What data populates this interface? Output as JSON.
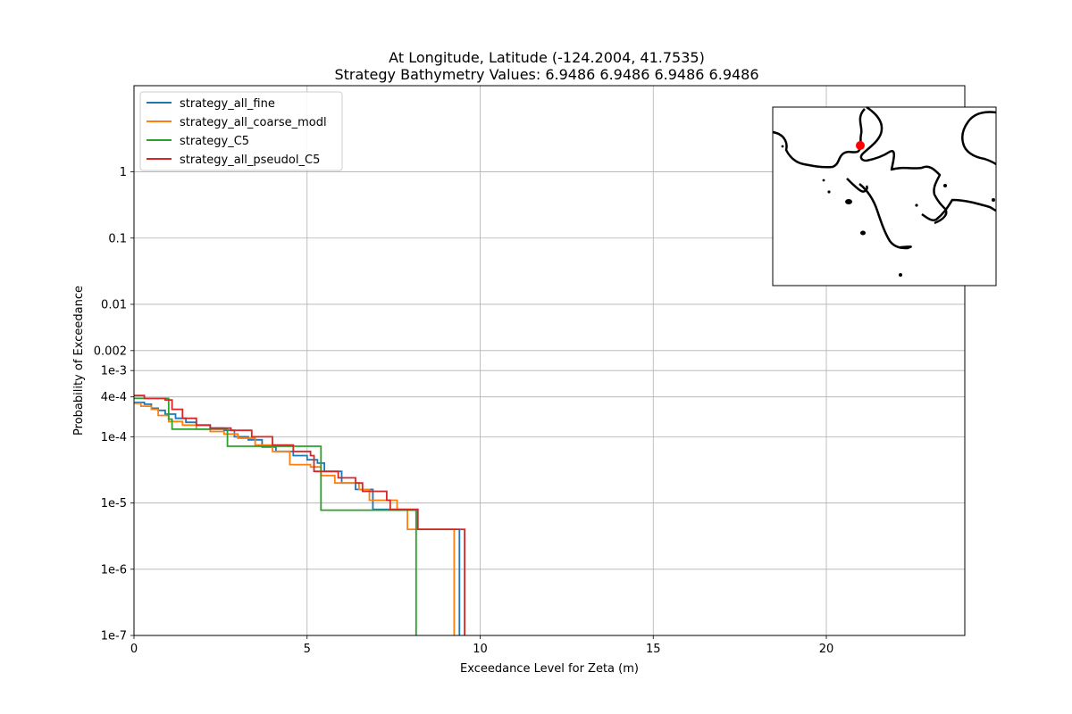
{
  "chart_data": {
    "type": "line",
    "title_line1": "At Longitude, Latitude (-124.2004,  41.7535)",
    "title_line2": "Strategy Bathymetry Values:    6.9486    6.9486    6.9486    6.9486",
    "xlabel": "Exceedance Level for Zeta (m)",
    "ylabel": "Probability of Exceedance",
    "xlim": [
      0,
      24
    ],
    "ylim": [
      1e-07,
      20
    ],
    "yscale": "log",
    "grid": true,
    "legend_placement": "top-left",
    "x_ticks": [
      {
        "value": 0,
        "label": "0"
      },
      {
        "value": 5,
        "label": "5"
      },
      {
        "value": 10,
        "label": "10"
      },
      {
        "value": 15,
        "label": "15"
      },
      {
        "value": 20,
        "label": "20"
      }
    ],
    "y_ticks": [
      {
        "value": 1,
        "label": "1"
      },
      {
        "value": 0.1,
        "label": "0.1"
      },
      {
        "value": 0.01,
        "label": "0.01"
      },
      {
        "value": 0.002,
        "label": "0.002"
      },
      {
        "value": 0.001,
        "label": "1e-3"
      },
      {
        "value": 0.0004,
        "label": "4e-4"
      },
      {
        "value": 0.0001,
        "label": "1e-4"
      },
      {
        "value": 1e-05,
        "label": "1e-5"
      },
      {
        "value": 1e-06,
        "label": "1e-6"
      },
      {
        "value": 1e-07,
        "label": "1e-7"
      }
    ],
    "series": [
      {
        "name": "strategy_all_fine",
        "color": "#1f77b4",
        "points": [
          [
            0,
            0.00033
          ],
          [
            0.3,
            0.00031
          ],
          [
            0.5,
            0.00027
          ],
          [
            0.7,
            0.00025
          ],
          [
            0.9,
            0.00022
          ],
          [
            1.2,
            0.00019
          ],
          [
            1.5,
            0.000165
          ],
          [
            1.8,
            0.00015
          ],
          [
            2.2,
            0.000135
          ],
          [
            2.6,
            0.000125
          ],
          [
            2.9,
            0.0001
          ],
          [
            3.3,
            9e-05
          ],
          [
            3.7,
            7e-05
          ],
          [
            4.1,
            6e-05
          ],
          [
            4.6,
            5.2e-05
          ],
          [
            5.0,
            4.5e-05
          ],
          [
            5.3,
            4e-05
          ],
          [
            5.5,
            3e-05
          ],
          [
            6.0,
            2e-05
          ],
          [
            6.4,
            1.6e-05
          ],
          [
            6.9,
            8e-06
          ],
          [
            7.5,
            8e-06
          ],
          [
            8.2,
            4e-06
          ],
          [
            9.4,
            4e-06
          ],
          [
            9.4,
            1e-07
          ]
        ]
      },
      {
        "name": "strategy_all_coarse_modl",
        "color": "#ff7f0e",
        "points": [
          [
            0,
            0.00032
          ],
          [
            0.2,
            0.00029
          ],
          [
            0.5,
            0.00026
          ],
          [
            0.7,
            0.00021
          ],
          [
            1.0,
            0.00017
          ],
          [
            1.4,
            0.00015
          ],
          [
            1.8,
            0.00013
          ],
          [
            2.2,
            0.00012
          ],
          [
            2.6,
            0.00011
          ],
          [
            3.0,
            9.5e-05
          ],
          [
            3.5,
            7.5e-05
          ],
          [
            4.0,
            6e-05
          ],
          [
            4.5,
            3.8e-05
          ],
          [
            5.1,
            3.5e-05
          ],
          [
            5.4,
            2.6e-05
          ],
          [
            5.8,
            2e-05
          ],
          [
            6.5,
            1.6e-05
          ],
          [
            6.8,
            1.1e-05
          ],
          [
            7.6,
            8e-06
          ],
          [
            7.9,
            4e-06
          ],
          [
            9.25,
            4e-06
          ],
          [
            9.25,
            1e-07
          ]
        ]
      },
      {
        "name": "strategy_C5",
        "color": "#2ca02c",
        "points": [
          [
            0,
            0.00038
          ],
          [
            1.0,
            0.00033
          ],
          [
            1.0,
            0.000185
          ],
          [
            1.1,
            0.00013
          ],
          [
            2.7,
            0.00013
          ],
          [
            2.7,
            7.2e-05
          ],
          [
            5.3,
            7.2e-05
          ],
          [
            5.4,
            7.8e-06
          ],
          [
            8.15,
            7.8e-06
          ],
          [
            8.15,
            1e-07
          ]
        ]
      },
      {
        "name": "strategy_all_pseudol_C5",
        "color": "#d62728",
        "points": [
          [
            0,
            0.00042
          ],
          [
            0.2,
            0.00042
          ],
          [
            0.3,
            0.00038
          ],
          [
            0.9,
            0.00036
          ],
          [
            1.1,
            0.00026
          ],
          [
            1.4,
            0.00019
          ],
          [
            1.8,
            0.00015
          ],
          [
            2.2,
            0.000135
          ],
          [
            2.8,
            0.000125
          ],
          [
            3.4,
            0.0001
          ],
          [
            4.0,
            7.5e-05
          ],
          [
            4.6,
            6e-05
          ],
          [
            5.1,
            5.2e-05
          ],
          [
            5.2,
            3e-05
          ],
          [
            5.9,
            2.4e-05
          ],
          [
            6.4,
            2e-05
          ],
          [
            6.6,
            1.5e-05
          ],
          [
            7.3,
            1.1e-05
          ],
          [
            7.4,
            8e-06
          ],
          [
            8.2,
            4e-06
          ],
          [
            9.55,
            4e-06
          ],
          [
            9.55,
            1e-07
          ]
        ]
      }
    ]
  },
  "inset_map": {
    "marker_color": "#ff0000",
    "coast_color": "#000000"
  }
}
